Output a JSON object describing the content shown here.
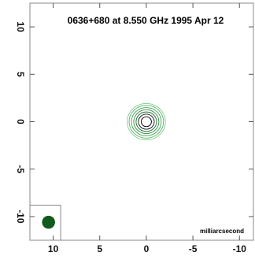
{
  "chart_data": {
    "type": "contour",
    "title": "0636+680 at 8.550 GHz 1995 Apr 12",
    "unit_label": "milliarcsecond",
    "x_axis": {
      "ticks": [
        10,
        5,
        0,
        -5,
        -10
      ],
      "tick_labels": [
        "10",
        "5",
        "0",
        "-5",
        "-10"
      ],
      "range": [
        12.5,
        -11.5
      ],
      "direction": "decreasing-right"
    },
    "y_axis": {
      "ticks": [
        10,
        5,
        0,
        -5,
        -10
      ],
      "tick_labels": [
        "10",
        "5",
        "0",
        "-5",
        "-10"
      ],
      "range": [
        -12.5,
        12.5
      ]
    },
    "core": {
      "x": 0,
      "y": 0
    },
    "contour_radii_mas": [
      0.55,
      0.85,
      1.1,
      1.35,
      1.6,
      1.85,
      2.05
    ],
    "contour_colors": [
      "#000000",
      "#111111",
      "#1f6b2e",
      "#2e8b3e",
      "#3aa04c",
      "#55b465",
      "#7ccc8a"
    ],
    "beam": {
      "x": 10.5,
      "y": -10.6,
      "diameter_mas": 1.4,
      "color": "#0f5a1c"
    },
    "beam_box": {
      "x_range": [
        12.5,
        9.2
      ],
      "y_range": [
        -12.5,
        -8.8
      ]
    },
    "frame_color": "#888888"
  }
}
